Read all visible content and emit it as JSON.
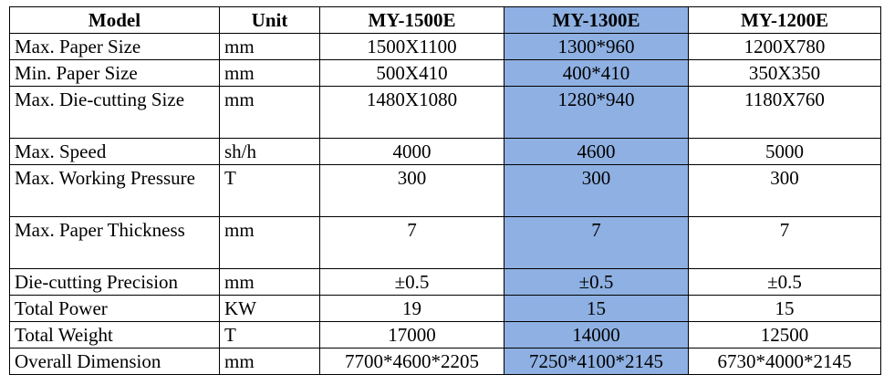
{
  "table": {
    "header": [
      "Model",
      "Unit",
      "MY-1500E",
      "MY-1300E",
      "MY-1200E"
    ],
    "rows": [
      [
        "Max. Paper Size",
        "mm",
        "1500X1100",
        "1300*960",
        "1200X780"
      ],
      [
        "Min. Paper Size",
        "mm",
        "500X410",
        "400*410",
        "350X350"
      ],
      [
        "Max. Die-cutting Size",
        "mm",
        "1480X1080",
        "1280*940",
        "1180X760"
      ],
      [
        "Max. Speed",
        "sh/h",
        "4000",
        "4600",
        "5000"
      ],
      [
        "Max. Working Pressure",
        "T",
        "300",
        "300",
        "300"
      ],
      [
        "Max. Paper Thickness",
        "mm",
        "7",
        "7",
        "7"
      ],
      [
        "Die-cutting Precision",
        "mm",
        "±0.5",
        "±0.5",
        "±0.5"
      ],
      [
        "Total Power",
        "KW",
        "19",
        "15",
        "15"
      ],
      [
        "Total Weight",
        "T",
        "17000",
        "14000",
        "12500"
      ],
      [
        "Overall Dimension",
        "mm",
        "7700*4600*2205",
        "7250*4100*2145",
        "6730*4000*2145"
      ]
    ]
  }
}
